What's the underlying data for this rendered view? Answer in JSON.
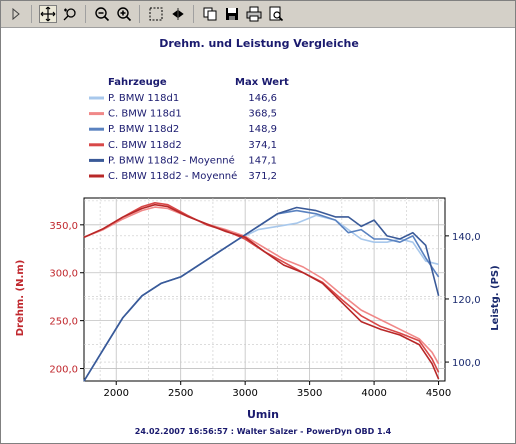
{
  "toolbar": {
    "items": [
      {
        "name": "expand-arrow-icon",
        "active": false
      },
      {
        "name": "pan-icon",
        "active": true
      },
      {
        "name": "zoom-tool-icon",
        "active": false
      },
      {
        "name": "zoom-out-icon",
        "active": false
      },
      {
        "name": "zoom-in-icon",
        "active": false
      },
      {
        "name": "select-rect-icon",
        "active": false
      },
      {
        "name": "cursor-icon",
        "active": false
      },
      {
        "name": "copy-icon",
        "active": false
      },
      {
        "name": "save-icon",
        "active": false
      },
      {
        "name": "print-icon",
        "active": false
      },
      {
        "name": "print-preview-icon",
        "active": false
      }
    ]
  },
  "chart_data": {
    "type": "line",
    "title": "Drehm. und Leistung Vergleiche",
    "footer": "24.02.2007 16:56:57 : Walter Salzer - PowerDyn OBD 1.4",
    "legend": {
      "header_name": "Fahrzeuge",
      "header_value": "Max Wert",
      "placement": "top-left"
    },
    "xlabel": "Umin",
    "xlim": [
      1750,
      4550
    ],
    "xticks": [
      "2000",
      "2500",
      "3000",
      "3500",
      "4000",
      "4500"
    ],
    "y_left": {
      "label": "Drehm. (N.m)",
      "lim": [
        187,
        378
      ],
      "ticks": [
        "350,0",
        "300,0",
        "250,0",
        "200,0"
      ]
    },
    "y_right": {
      "label": "Leistg. (PS)",
      "lim": [
        94,
        152
      ],
      "ticks": [
        "140,0",
        "120,0",
        "100,0"
      ]
    },
    "grid": true,
    "series": [
      {
        "name": "P. BMW 118d1",
        "max": "146,6",
        "axis": "right",
        "color": "#a8c8ec",
        "x": [
          1750,
          1900,
          2050,
          2200,
          2350,
          2500,
          2650,
          2800,
          2950,
          3100,
          3250,
          3400,
          3550,
          3700,
          3800,
          3900,
          4000,
          4100,
          4200,
          4300,
          4400,
          4500
        ],
        "y": [
          94,
          104,
          114,
          121,
          125,
          127,
          131,
          135,
          139,
          142,
          143,
          144,
          146.5,
          145,
          142,
          139,
          138,
          138,
          139,
          138,
          132,
          131
        ]
      },
      {
        "name": "C. BMW 118d1",
        "max": "368,5",
        "axis": "left",
        "color": "#f08888",
        "x": [
          1750,
          1900,
          2050,
          2200,
          2300,
          2400,
          2550,
          2700,
          2850,
          3000,
          3150,
          3300,
          3450,
          3600,
          3750,
          3900,
          4050,
          4200,
          4350,
          4450,
          4500
        ],
        "y": [
          337,
          345,
          356,
          365,
          368.5,
          367,
          359,
          351,
          345,
          338,
          326,
          314,
          306,
          294,
          277,
          261,
          251,
          241,
          231,
          217,
          205
        ]
      },
      {
        "name": "P. BMW 118d2",
        "max": "148,9",
        "axis": "right",
        "color": "#5a82c0",
        "x": [
          1750,
          1900,
          2050,
          2200,
          2350,
          2500,
          2650,
          2800,
          2950,
          3100,
          3250,
          3400,
          3550,
          3700,
          3800,
          3900,
          4000,
          4100,
          4200,
          4300,
          4400,
          4500
        ],
        "y": [
          94,
          104,
          114,
          121,
          125,
          127,
          131,
          135,
          139,
          143,
          147,
          148,
          147,
          145,
          141,
          142,
          139,
          139,
          138,
          140,
          133,
          127
        ]
      },
      {
        "name": "C. BMW 118d2",
        "max": "374,1",
        "axis": "left",
        "color": "#d84848",
        "x": [
          1750,
          1900,
          2050,
          2200,
          2300,
          2400,
          2550,
          2700,
          2850,
          3000,
          3150,
          3300,
          3450,
          3600,
          3750,
          3900,
          4050,
          4200,
          4350,
          4450,
          4500
        ],
        "y": [
          337,
          346,
          358,
          369,
          373,
          371,
          360,
          350,
          344,
          335,
          322,
          311,
          300,
          290,
          272,
          255,
          244,
          237,
          229,
          210,
          196
        ]
      },
      {
        "name": "P. BMW 118d2 - Moyenné",
        "max": "147,1",
        "axis": "right",
        "color": "#3a5a98",
        "x": [
          1750,
          1900,
          2050,
          2200,
          2350,
          2500,
          2650,
          2800,
          2950,
          3100,
          3250,
          3400,
          3550,
          3700,
          3800,
          3900,
          4000,
          4100,
          4200,
          4300,
          4400,
          4500
        ],
        "y": [
          94,
          104,
          114,
          121,
          125,
          127,
          131,
          135,
          139,
          143,
          147,
          149,
          148,
          146,
          146,
          143,
          145,
          140,
          139,
          141,
          137,
          121
        ]
      },
      {
        "name": "C. BMW 118d2 - Moyenné",
        "max": "371,2",
        "axis": "left",
        "color": "#b82828",
        "x": [
          1750,
          1900,
          2050,
          2200,
          2300,
          2400,
          2550,
          2700,
          2850,
          3000,
          3150,
          3300,
          3450,
          3600,
          3750,
          3900,
          4050,
          4200,
          4350,
          4450,
          4500
        ],
        "y": [
          337,
          346,
          358,
          367,
          371,
          369,
          359,
          351,
          343,
          337,
          322,
          308,
          300,
          289,
          269,
          249,
          241,
          235,
          225,
          205,
          189
        ]
      }
    ]
  }
}
